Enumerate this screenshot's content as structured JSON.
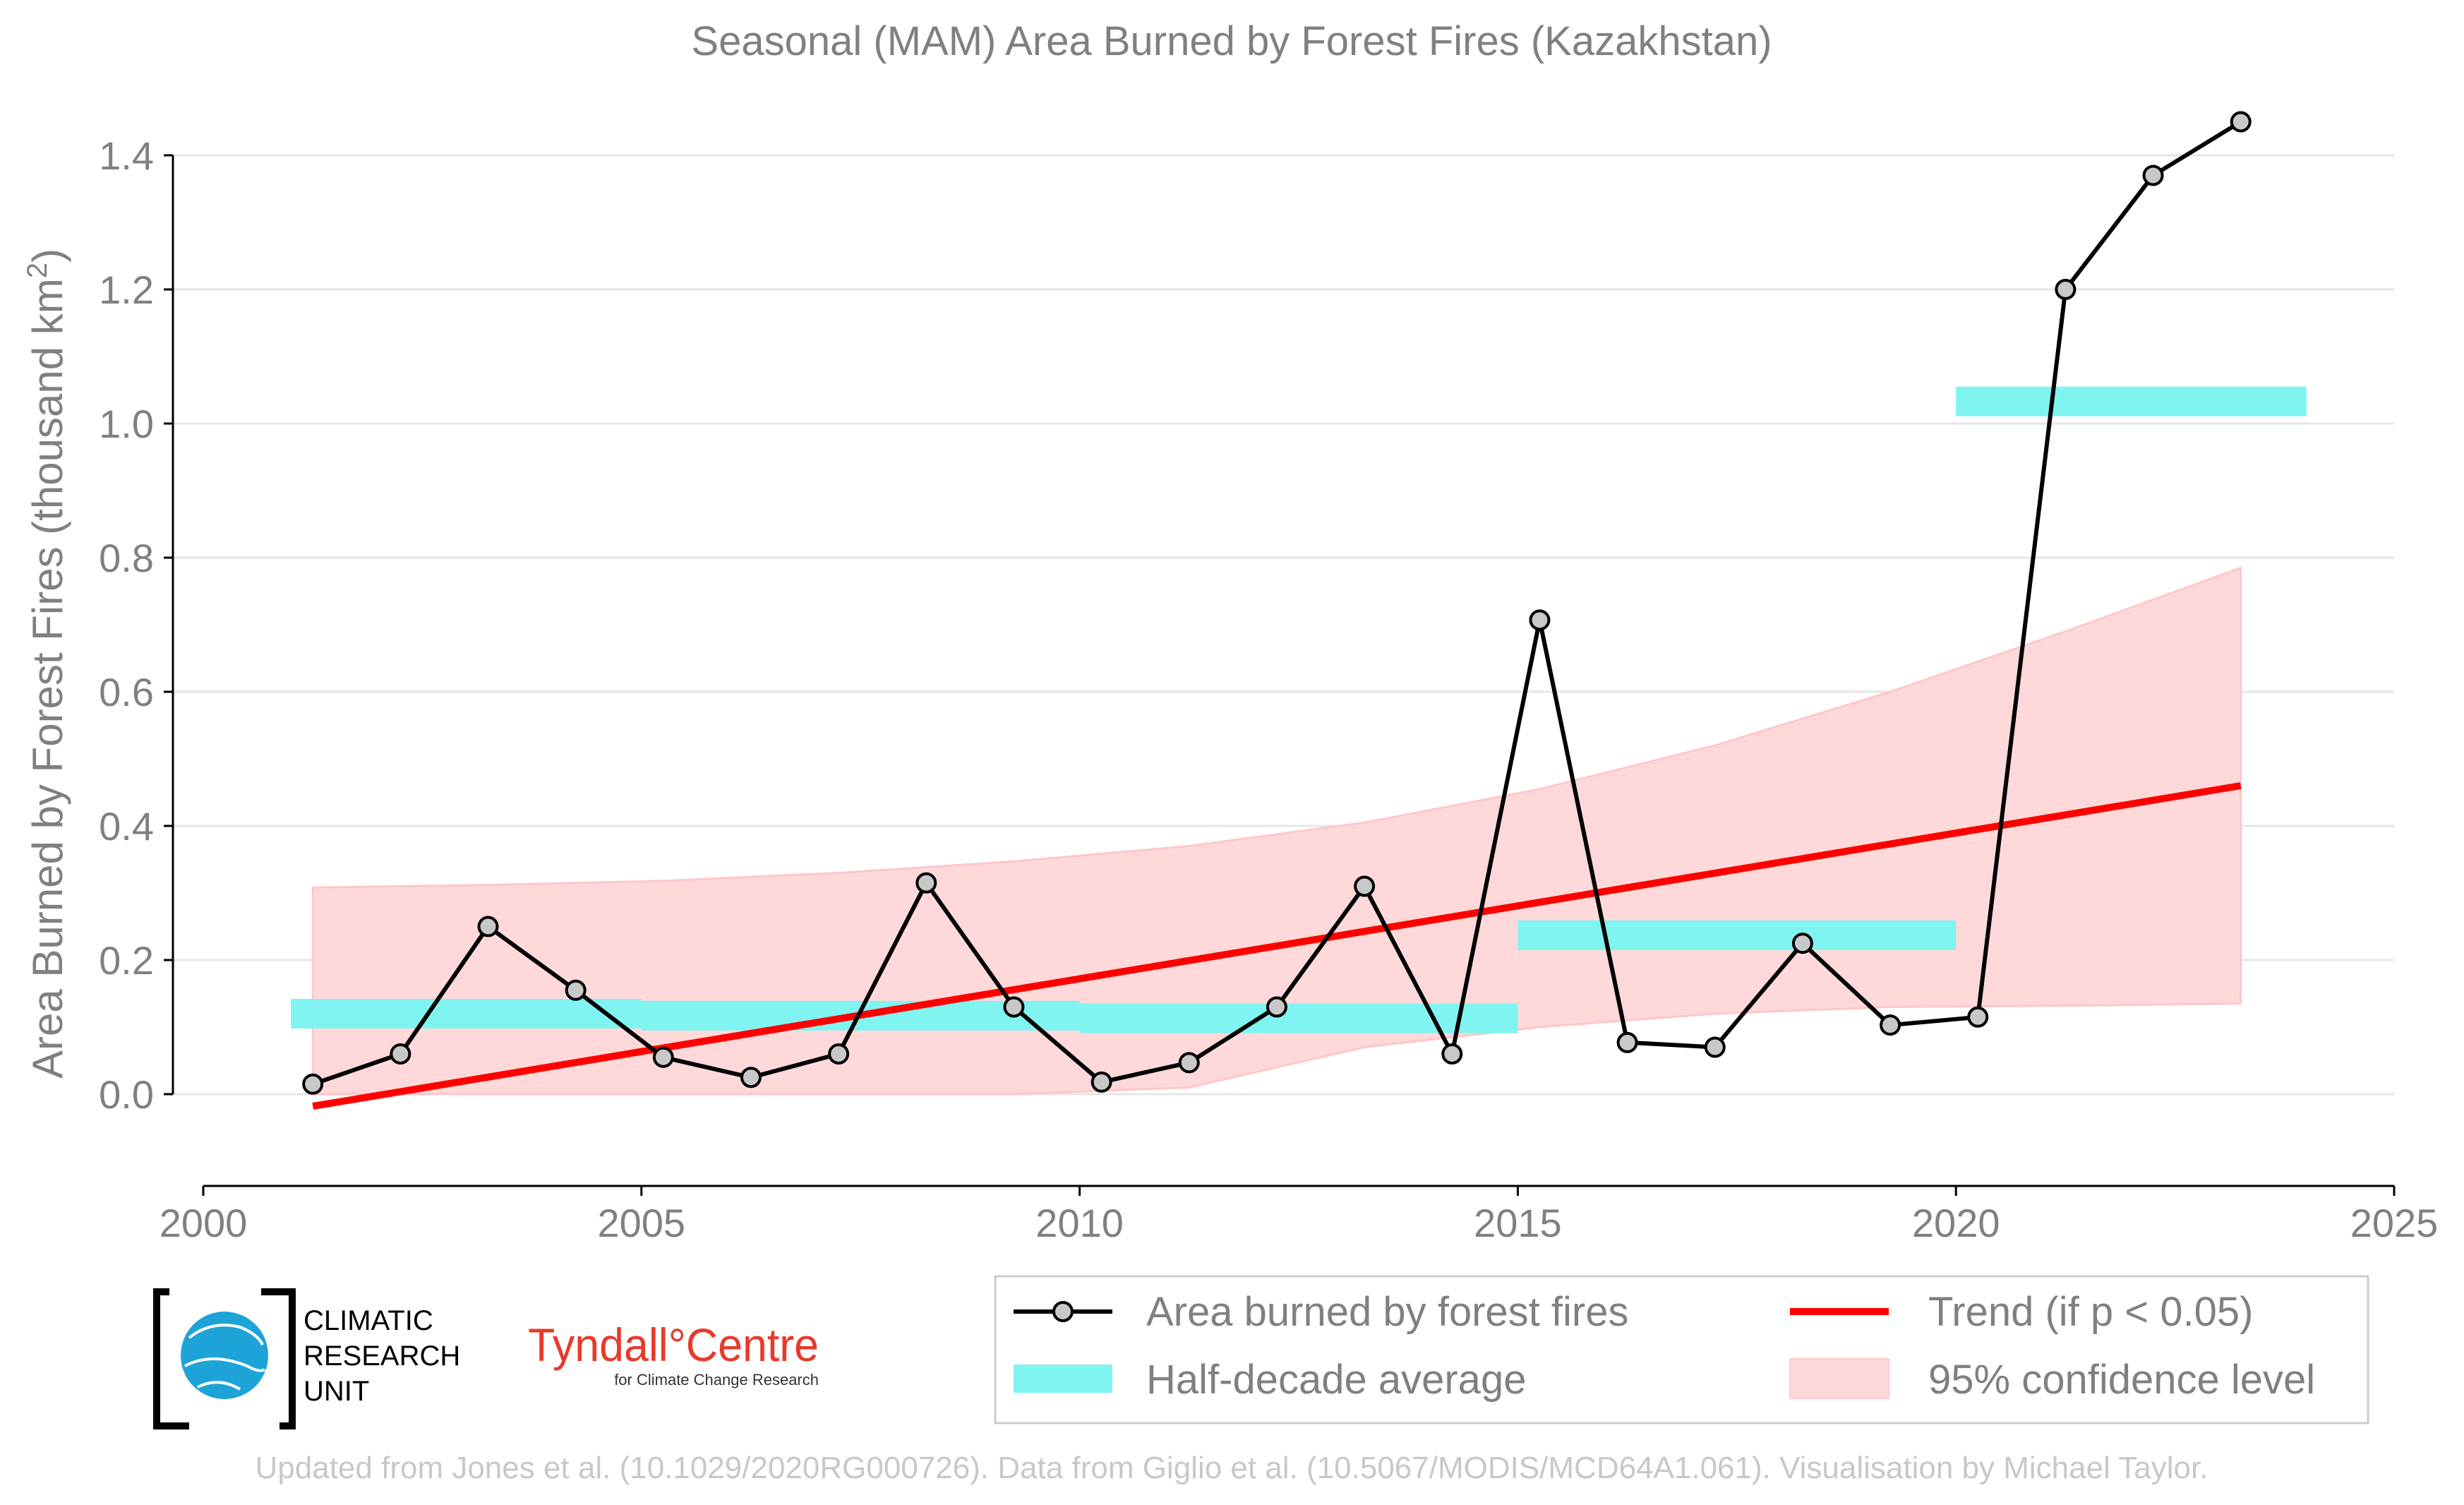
{
  "chart_data": {
    "type": "line",
    "title": "Seasonal (MAM) Area Burned by Forest Fires (Kazakhstan)",
    "xlabel": "",
    "ylabel": "Area Burned by Forest Fires (thousand km",
    "ylabel_sup": "2",
    "ylabel_close": ")",
    "xlim": [
      2000,
      2025
    ],
    "ylim": [
      -0.13,
      1.45
    ],
    "x_ticks": [
      2000,
      2005,
      2010,
      2015,
      2020,
      2025
    ],
    "y_ticks": [
      0.0,
      0.2,
      0.4,
      0.6,
      0.8,
      1.0,
      1.2,
      1.4
    ],
    "y_tick_labels": [
      "0.0",
      "0.2",
      "0.4",
      "0.6",
      "0.8",
      "1.0",
      "1.2",
      "1.4"
    ],
    "grid": "horizontal",
    "legend_position": "bottom-right",
    "series": [
      {
        "name": "Area burned by forest fires",
        "color": "#000000",
        "x": [
          2001.25,
          2002.25,
          2003.25,
          2004.25,
          2005.25,
          2006.25,
          2007.25,
          2008.25,
          2009.25,
          2010.25,
          2011.25,
          2012.25,
          2013.25,
          2014.25,
          2015.25,
          2016.25,
          2017.25,
          2018.25,
          2019.25,
          2020.25,
          2021.25,
          2022.25,
          2023.25
        ],
        "values": [
          0.015,
          0.06,
          0.25,
          0.155,
          0.055,
          0.025,
          0.06,
          0.315,
          0.13,
          0.018,
          0.047,
          0.13,
          0.31,
          0.06,
          0.707,
          0.077,
          0.07,
          0.225,
          0.103,
          0.115,
          1.2,
          1.37,
          1.45
        ]
      }
    ],
    "half_decade_average": {
      "name": "Half-decade average",
      "color": "#80f4f1",
      "segments": [
        {
          "x_start": 2001,
          "x_end": 2005,
          "value": 0.12
        },
        {
          "x_start": 2005,
          "x_end": 2010,
          "value": 0.117
        },
        {
          "x_start": 2010,
          "x_end": 2015,
          "value": 0.113
        },
        {
          "x_start": 2015,
          "x_end": 2020,
          "value": 0.237
        },
        {
          "x_start": 2020,
          "x_end": 2024,
          "value": 1.033
        }
      ]
    },
    "trend": {
      "name": "Trend (if p < 0.05)",
      "color": "#ff0000",
      "x": [
        2001.25,
        2023.25
      ],
      "values": [
        -0.018,
        0.46
      ]
    },
    "confidence_band": {
      "name": "95% confidence level",
      "color": "#ffd9da",
      "x": [
        2001.25,
        2003.25,
        2005.25,
        2007.25,
        2009.25,
        2011.25,
        2013.25,
        2015.25,
        2017.25,
        2019.25,
        2021.25,
        2023.25
      ],
      "upper": [
        0.308,
        0.312,
        0.318,
        0.33,
        0.347,
        0.37,
        0.405,
        0.455,
        0.52,
        0.6,
        0.69,
        0.785
      ],
      "lower": [
        0.0,
        0.0,
        0.0,
        0.0,
        0.0,
        0.01,
        0.07,
        0.1,
        0.12,
        0.13,
        0.132,
        0.135
      ]
    }
  },
  "logos": {
    "cru_text": [
      "CLIMATIC",
      "RESEARCH",
      "UNIT"
    ],
    "tyndall_main": "Tyndall°Centre",
    "tyndall_sub": "for Climate Change Research"
  },
  "credit": "Updated from Jones et al. (10.1029/2020RG000726). Data from Giglio et al. (10.5067/MODIS/MCD64A1.061). Visualisation by Michael Taylor."
}
